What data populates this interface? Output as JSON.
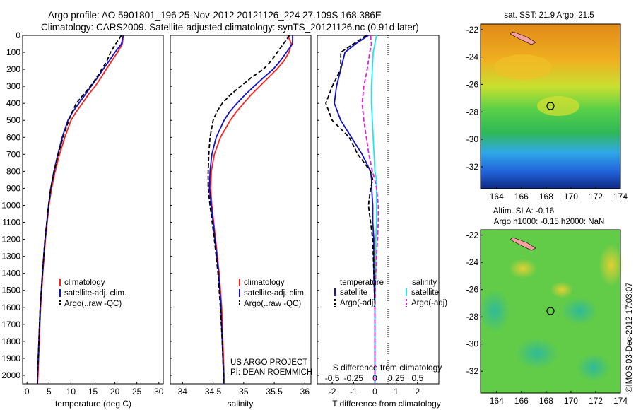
{
  "header": {
    "line1": "Argo profile: AO 5901801_196 25-Nov-2012 20121126_224 27.109S 168.386E",
    "line2": "Climatology: CARS2009. Satellite-adjusted climatology: synTS_20121126.nc (0.91d later)"
  },
  "colors": {
    "climatology": "#ff2020",
    "satellite": "#1010d0",
    "argo": "#000000",
    "sal_satellite": "#20e8f0",
    "sal_argo": "#e020e0"
  },
  "panel_temperature": {
    "xlabel": "temperature (deg C)",
    "xticks": [
      "0",
      "5",
      "10",
      "15",
      "20",
      "25",
      "30"
    ],
    "legend": [
      "climatology",
      "satellite-adj. clim.",
      "Argo(..raw -QC)"
    ]
  },
  "panel_salinity": {
    "xlabel": "salinity",
    "xticks": [
      "34",
      "34.5",
      "35",
      "35.5",
      "36"
    ],
    "legend": [
      "climatology",
      "satellite-adj. clim.",
      "Argo(..raw -QC)"
    ],
    "project_line1": "US ARGO PROJECT",
    "project_line2": "PI: DEAN ROEMMICH"
  },
  "panel_difference": {
    "xlabel_bottom": "T difference from climatology",
    "xlabel_top": "S difference from climatology",
    "xticks_t": [
      "-2",
      "-1",
      "0",
      "1",
      "2"
    ],
    "xticks_s": [
      "-0.5",
      "-0.25",
      "0",
      "0.25",
      "0.5"
    ],
    "legend_temp_title": "temperature",
    "legend_sal_title": "salinity",
    "legend_items": [
      "satellite",
      "Argo(-adj)"
    ]
  },
  "depth_axis": {
    "ticks": [
      "0",
      "100",
      "200",
      "300",
      "400",
      "500",
      "600",
      "700",
      "800",
      "900",
      "1000",
      "1100",
      "1200",
      "1300",
      "1400",
      "1500",
      "1600",
      "1700",
      "1800",
      "1900",
      "2000"
    ]
  },
  "map_sst": {
    "title": "sat. SST: 21.9 Argo: 21.5",
    "xticks": [
      "164",
      "166",
      "168",
      "170",
      "172",
      "174"
    ],
    "yticks": [
      "-22",
      "-24",
      "-26",
      "-28",
      "-30",
      "-32"
    ]
  },
  "map_sla": {
    "title1": "Altim. SLA: -0.16",
    "title2": "Argo h1000: -0.15 h2000: NaN",
    "xticks": [
      "164",
      "166",
      "168",
      "170",
      "172",
      "174"
    ],
    "yticks": [
      "-22",
      "-24",
      "-26",
      "-28",
      "-30",
      "-32"
    ]
  },
  "footer": {
    "stamp": "©IMOS 03-Dec-2012 17:03:07"
  },
  "chart_data": [
    {
      "type": "line",
      "title": "",
      "xlabel": "temperature (deg C)",
      "ylabel": "",
      "xlim": [
        -1,
        31
      ],
      "ylim": [
        2050,
        0
      ],
      "depth": [
        0,
        50,
        100,
        150,
        200,
        250,
        300,
        350,
        400,
        450,
        500,
        600,
        700,
        800,
        900,
        1000,
        1200,
        1400,
        1600,
        1800,
        2000,
        2050
      ],
      "series": [
        {
          "name": "climatology",
          "values": [
            21.9,
            21.7,
            20.6,
            19.3,
            18.0,
            16.8,
            15.5,
            13.9,
            12.6,
            11.2,
            10.0,
            8.6,
            7.4,
            6.4,
            5.6,
            5.0,
            4.2,
            3.6,
            3.1,
            2.8,
            2.5,
            2.4
          ]
        },
        {
          "name": "satellite-adj. clim.",
          "values": [
            21.9,
            21.5,
            20.0,
            18.7,
            17.3,
            16.0,
            14.6,
            13.2,
            11.8,
            10.4,
            9.3,
            8.0,
            7.0,
            6.1,
            5.4,
            4.9,
            4.1,
            3.5,
            3.0,
            2.7,
            2.4,
            2.4
          ]
        },
        {
          "name": "Argo(..raw -QC)",
          "values": [
            21.5,
            20.2,
            19.0,
            18.2,
            17.0,
            15.8,
            14.4,
            12.8,
            11.2,
            10.3,
            9.5,
            8.2,
            7.1,
            6.2,
            5.4,
            4.9,
            4.1,
            3.5,
            3.0,
            2.7,
            2.4,
            2.4
          ]
        }
      ]
    },
    {
      "type": "line",
      "title": "",
      "xlabel": "salinity",
      "ylabel": "",
      "xlim": [
        33.8,
        36.1
      ],
      "ylim": [
        2050,
        0
      ],
      "depth": [
        0,
        50,
        100,
        150,
        200,
        250,
        300,
        350,
        400,
        450,
        500,
        600,
        700,
        800,
        900,
        1000,
        1200,
        1400,
        1600,
        1800,
        2000,
        2050
      ],
      "series": [
        {
          "name": "climatology",
          "values": [
            35.72,
            35.78,
            35.74,
            35.66,
            35.54,
            35.4,
            35.26,
            35.12,
            35.0,
            34.88,
            34.78,
            34.62,
            34.52,
            34.47,
            34.46,
            34.48,
            34.54,
            34.6,
            34.64,
            34.66,
            34.68,
            34.68
          ]
        },
        {
          "name": "satellite-adj. clim.",
          "values": [
            35.8,
            35.8,
            35.7,
            35.6,
            35.48,
            35.32,
            35.17,
            35.02,
            34.89,
            34.77,
            34.68,
            34.55,
            34.48,
            34.45,
            34.44,
            34.47,
            34.53,
            34.59,
            34.63,
            34.65,
            34.67,
            34.67
          ]
        },
        {
          "name": "Argo(..raw -QC)",
          "values": [
            35.75,
            35.65,
            35.55,
            35.45,
            35.32,
            35.12,
            34.95,
            34.78,
            34.65,
            34.56,
            34.5,
            34.45,
            34.43,
            34.42,
            34.42,
            34.45,
            34.52,
            34.58,
            34.62,
            34.65,
            34.67,
            34.67
          ]
        }
      ]
    },
    {
      "type": "line",
      "title": "",
      "xlabel": "T difference from climatology",
      "x2label": "S difference from climatology",
      "ylabel": "",
      "xlim": [
        -2.7,
        3.0
      ],
      "x2lim": [
        -0.675,
        0.75
      ],
      "ylim": [
        2050,
        0
      ],
      "depth": [
        0,
        50,
        100,
        200,
        300,
        400,
        500,
        600,
        700,
        800,
        850,
        900,
        1000,
        1100,
        1200,
        1400,
        1600,
        1800,
        2000,
        2050
      ],
      "series": [
        {
          "name": "temperature satellite",
          "axis": "T",
          "values": [
            -0.3,
            -0.9,
            -1.4,
            -1.6,
            -1.8,
            -1.9,
            -1.6,
            -1.1,
            -0.6,
            -0.2,
            -0.15,
            -0.15,
            -0.1,
            -0.1,
            -0.05,
            -0.05,
            0,
            0,
            0,
            0
          ]
        },
        {
          "name": "temperature Argo(-adj)",
          "axis": "T",
          "values": [
            -0.4,
            -1.0,
            -1.6,
            -1.6,
            -2.0,
            -2.3,
            -2.0,
            -1.2,
            -0.8,
            -0.2,
            -0.1,
            -0.2,
            -0.3,
            -0.2,
            -0.1,
            -0.05,
            0,
            0,
            0,
            0
          ]
        },
        {
          "name": "salinity satellite",
          "axis": "S",
          "values": [
            0.02,
            0.0,
            -0.02,
            -0.03,
            -0.04,
            -0.04,
            -0.03,
            -0.02,
            -0.01,
            0.0,
            0.02,
            0.02,
            0.02,
            0.02,
            0.01,
            0.01,
            0.0,
            0.0,
            0.0,
            0.0
          ]
        },
        {
          "name": "salinity Argo(-adj)",
          "axis": "S",
          "values": [
            -0.05,
            -0.04,
            -0.06,
            -0.09,
            -0.13,
            -0.15,
            -0.13,
            -0.1,
            -0.07,
            -0.03,
            0.0,
            0.02,
            0.04,
            0.04,
            0.03,
            0.01,
            0.0,
            0.0,
            0.0,
            0.0
          ]
        }
      ]
    }
  ]
}
